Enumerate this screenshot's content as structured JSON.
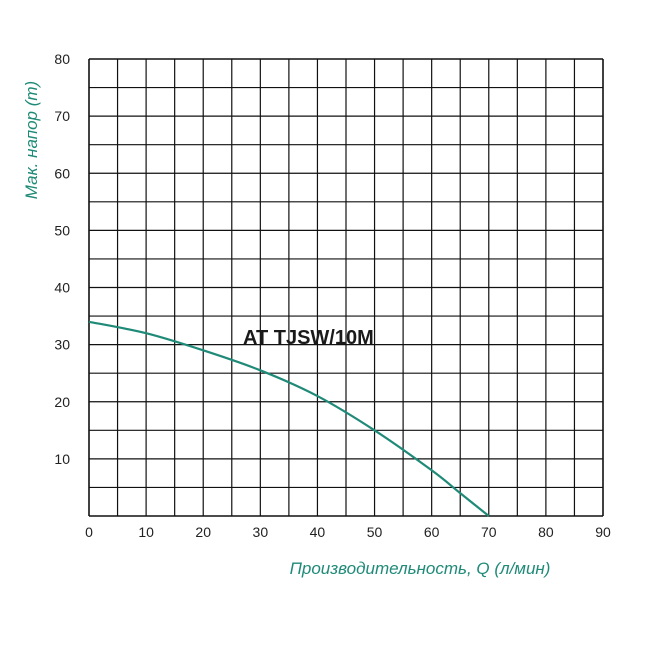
{
  "chart_data": {
    "type": "line",
    "xlabel": "Производительность, Q (л/мин)",
    "ylabel": "Мак. напор (m)",
    "annotation": "AT TJSW/10M",
    "xlim": [
      0,
      90
    ],
    "ylim": [
      0,
      80
    ],
    "x_ticks": [
      "0",
      "10",
      "20",
      "30",
      "40",
      "50",
      "60",
      "70",
      "80",
      "90"
    ],
    "y_ticks": [
      "10",
      "20",
      "30",
      "40",
      "50",
      "60",
      "70",
      "80"
    ],
    "grid": true,
    "series": [
      {
        "x": [
          0,
          10,
          20,
          30,
          40,
          50,
          60,
          65,
          70
        ],
        "y": [
          34,
          32,
          29,
          25.5,
          21,
          15,
          8,
          4,
          0
        ]
      }
    ]
  },
  "colors": {
    "curve": "#1f8a78",
    "axis_title": "#1f8a78",
    "grid": "#111111"
  }
}
